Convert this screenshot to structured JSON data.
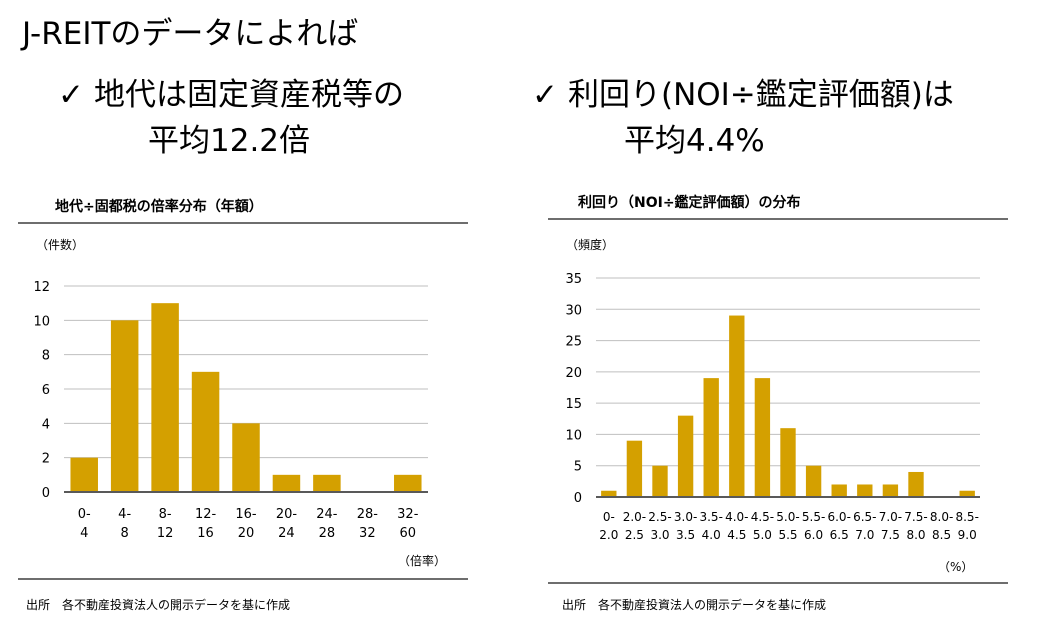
{
  "heading": "J-REITのデータによれば",
  "bullet_left": {
    "check": "✓",
    "line1": "地代は固定資産税等の",
    "line2": "平均12.2倍"
  },
  "bullet_right": {
    "check": "✓",
    "line1": "利回り(NOI÷鑑定評価額)は",
    "line2": "平均4.4%"
  },
  "colors": {
    "bar": "#D4A000",
    "grid": "#bfbfbf",
    "axis": "#595959"
  },
  "chart_data": [
    {
      "type": "bar",
      "title": "地代÷固都税の倍率分布（年額）",
      "ylabel": "（件数）",
      "xlabel": "（倍率）",
      "categories": [
        [
          "0-",
          "4"
        ],
        [
          "4-",
          "8"
        ],
        [
          "8-",
          "12"
        ],
        [
          "12-",
          "16"
        ],
        [
          "16-",
          "20"
        ],
        [
          "20-",
          "24"
        ],
        [
          "24-",
          "28"
        ],
        [
          "28-",
          "32"
        ],
        [
          "32-",
          "60"
        ]
      ],
      "values": [
        2,
        10,
        11,
        7,
        4,
        1,
        1,
        0,
        1
      ],
      "ylim": [
        0,
        12
      ],
      "yticks": [
        0,
        2,
        4,
        6,
        8,
        10,
        12
      ],
      "grid": true,
      "source": "出所　各不動産投資法人の開示データを基に作成"
    },
    {
      "type": "bar",
      "title": "利回り（NOI÷鑑定評価額）の分布",
      "ylabel": "（頻度）",
      "xlabel": "（%）",
      "categories": [
        [
          "0-",
          "2.0"
        ],
        [
          "2.0-",
          "2.5"
        ],
        [
          "2.5-",
          "3.0"
        ],
        [
          "3.0-",
          "3.5"
        ],
        [
          "3.5-",
          "4.0"
        ],
        [
          "4.0-",
          "4.5"
        ],
        [
          "4.5-",
          "5.0"
        ],
        [
          "5.0-",
          "5.5"
        ],
        [
          "5.5-",
          "6.0"
        ],
        [
          "6.0-",
          "6.5"
        ],
        [
          "6.5-",
          "7.0"
        ],
        [
          "7.0-",
          "7.5"
        ],
        [
          "7.5-",
          "8.0"
        ],
        [
          "8.0-",
          "8.5"
        ],
        [
          "8.5-",
          "9.0"
        ]
      ],
      "values": [
        1,
        9,
        5,
        13,
        19,
        29,
        19,
        11,
        5,
        2,
        2,
        2,
        4,
        0,
        1
      ],
      "ylim": [
        0,
        35
      ],
      "yticks": [
        0,
        5,
        10,
        15,
        20,
        25,
        30,
        35
      ],
      "grid": true,
      "source": "出所　各不動産投資法人の開示データを基に作成"
    }
  ]
}
